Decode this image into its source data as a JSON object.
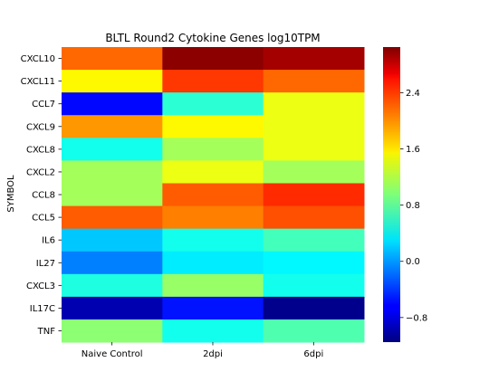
{
  "chart_data": {
    "type": "heatmap",
    "title": "BLTL Round2 Cytokine Genes log10TPM",
    "xlabel": "",
    "ylabel": "SYMBOL",
    "x_categories": [
      "Naive Control",
      "2dpi",
      "6dpi"
    ],
    "y_categories": [
      "CXCL10",
      "CXCL11",
      "CCL7",
      "CXCL9",
      "CXCL8",
      "CXCL2",
      "CCL8",
      "CCL5",
      "IL6",
      "IL27",
      "CXCL3",
      "IL17C",
      "TNF"
    ],
    "values": [
      [
        2.1,
        3.0,
        2.9
      ],
      [
        1.5,
        2.3,
        2.1
      ],
      [
        -0.6,
        0.6,
        1.4
      ],
      [
        1.9,
        1.5,
        1.4
      ],
      [
        0.5,
        1.1,
        1.4
      ],
      [
        1.1,
        1.4,
        1.1
      ],
      [
        1.1,
        2.15,
        2.35
      ],
      [
        2.15,
        2.0,
        2.2
      ],
      [
        0.2,
        0.5,
        0.7
      ],
      [
        -0.1,
        0.35,
        0.4
      ],
      [
        0.55,
        1.05,
        0.5
      ],
      [
        -0.95,
        -0.55,
        -1.1
      ],
      [
        1.0,
        0.5,
        0.75
      ]
    ],
    "colormap": "jet",
    "vmin": -1.15,
    "vmax": 3.05,
    "colorbar_ticks": [
      -0.8,
      0.0,
      0.8,
      1.6,
      2.4
    ],
    "grid": false
  }
}
